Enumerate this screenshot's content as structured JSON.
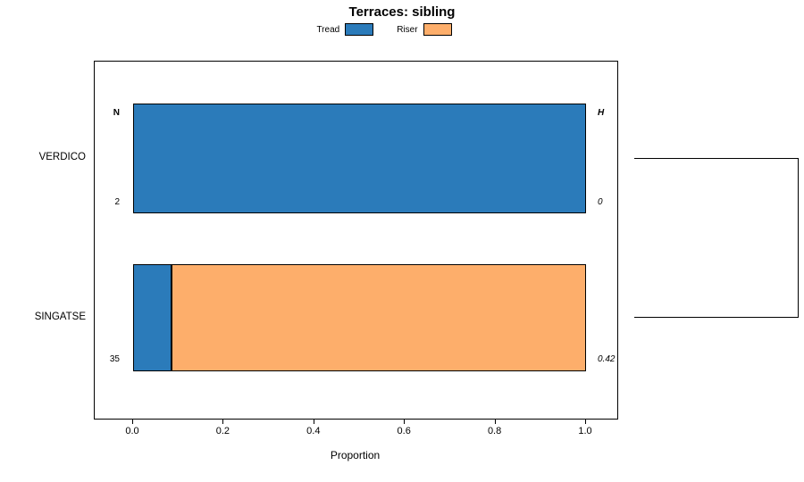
{
  "title": "Terraces: sibling",
  "legend": {
    "items": [
      {
        "label": "Tread",
        "color": "#2b7bba"
      },
      {
        "label": "Riser",
        "color": "#fdae6b"
      }
    ]
  },
  "chart_data": {
    "type": "bar",
    "orientation": "horizontal",
    "stacked": true,
    "title": "Terraces: sibling",
    "xlabel": "Proportion",
    "xlim": [
      0,
      1
    ],
    "xticks": [
      0,
      0.2,
      0.4,
      0.6,
      0.8,
      1.0
    ],
    "xtick_labels": [
      "0.0",
      "0.2",
      "0.4",
      "0.6",
      "0.8",
      "1.0"
    ],
    "categories": [
      "VERDICO",
      "SINGATSE"
    ],
    "series": [
      {
        "name": "Tread",
        "color": "#2b7bba",
        "values": [
          1.0,
          0.085
        ]
      },
      {
        "name": "Riser",
        "color": "#fdae6b",
        "values": [
          0.0,
          0.915
        ]
      }
    ],
    "columns": {
      "n_header": "N",
      "h_header": "H"
    },
    "annotations": {
      "n_values": [
        "2",
        "35"
      ],
      "h_values": [
        "0",
        "0.42"
      ]
    },
    "legend_position": "top",
    "grid": false
  }
}
